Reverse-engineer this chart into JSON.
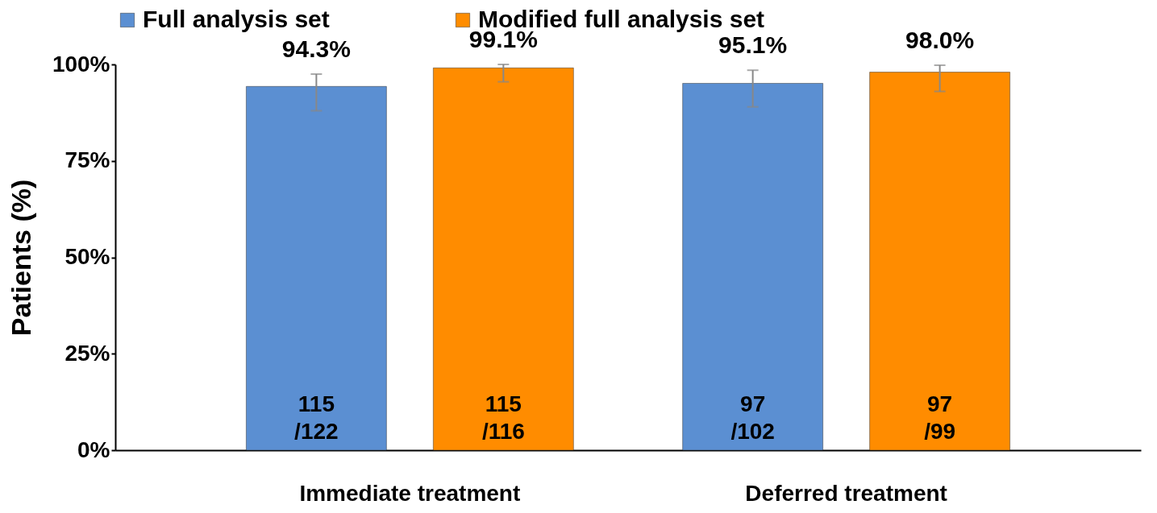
{
  "chart_data": {
    "type": "bar",
    "ylabel": "Patients (%)",
    "categories": [
      "Immediate treatment",
      "Deferred treatment"
    ],
    "series": [
      {
        "name": "Full analysis set",
        "color": "#5b8fd2",
        "values": [
          94.3,
          95.1
        ],
        "errors": [
          [
            88,
            97.5
          ],
          [
            89,
            98.5
          ]
        ],
        "value_labels": [
          "94.3%",
          "95.1%"
        ]
      },
      {
        "name": "Modified full analysis set",
        "color": "#ff8c00",
        "values": [
          99.1,
          98.0
        ],
        "errors": [
          [
            95.5,
            100
          ],
          [
            93,
            99.8
          ]
        ],
        "value_labels": [
          "99.1%",
          "98.0%"
        ]
      }
    ],
    "annotations": [
      "115\n/122",
      "97\n/102",
      "115\n/116",
      "97\n/99"
    ],
    "ylim": [
      0,
      100
    ],
    "yticks": [
      {
        "value": 0,
        "label": "0%"
      },
      {
        "value": 25,
        "label": "25%"
      },
      {
        "value": 50,
        "label": "50%"
      },
      {
        "value": 75,
        "label": "75%"
      },
      {
        "value": 100,
        "label": "100%"
      }
    ],
    "grid": false,
    "legend": "top"
  }
}
